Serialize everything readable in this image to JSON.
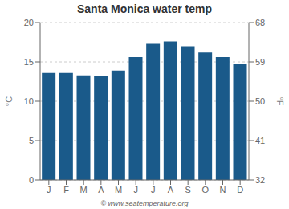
{
  "chart_data": {
    "type": "bar",
    "title": "Santa Monica water temp",
    "categories": [
      "J",
      "F",
      "M",
      "A",
      "M",
      "J",
      "J",
      "A",
      "S",
      "O",
      "N",
      "D"
    ],
    "values": [
      13.6,
      13.6,
      13.3,
      13.2,
      13.9,
      15.6,
      17.3,
      17.6,
      17.0,
      16.2,
      15.6,
      14.7
    ],
    "color": "#1a5a8a",
    "ylabel": "°C",
    "y2label": "°F",
    "ylim": [
      0,
      20
    ],
    "yticks": [
      0,
      5,
      10,
      15,
      20
    ],
    "y2lim": [
      32,
      68
    ],
    "y2ticks": [
      32,
      41,
      50,
      59,
      68
    ],
    "grid": true,
    "annotation": "© www.seatemperature.org"
  }
}
